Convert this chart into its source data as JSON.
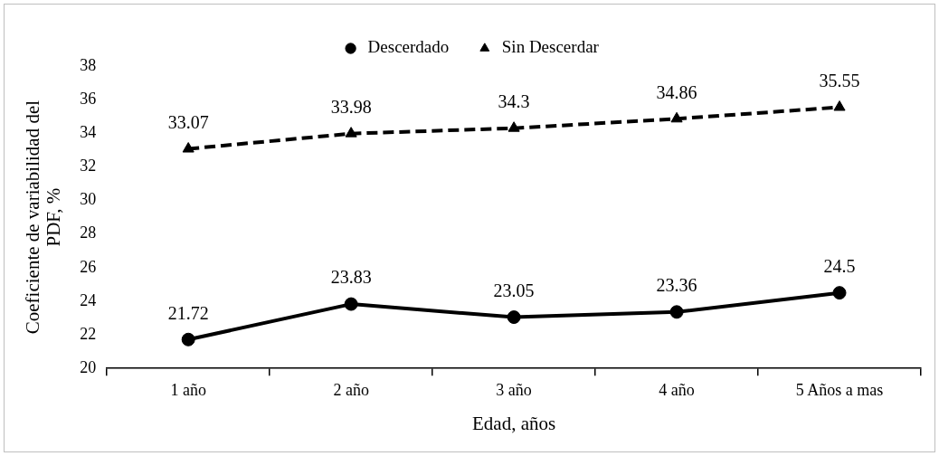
{
  "chart_data": {
    "type": "line",
    "xlabel": "Edad, años",
    "ylabel": "Coeficiente de variabilidad del PDF, %",
    "categories": [
      "1 año",
      "2 año",
      "3 año",
      "4 año",
      "5 Años a mas"
    ],
    "series": [
      {
        "name": "Descerdado",
        "color": "#000000",
        "values": [
          21.72,
          23.83,
          23.05,
          23.36,
          24.5
        ],
        "marker": "circle",
        "line_style": "solid"
      },
      {
        "name": "Sin Descerdar",
        "color": "#000000",
        "values": [
          33.07,
          33.98,
          34.3,
          34.86,
          35.55
        ],
        "marker": "triangle",
        "line_style": "dashed"
      }
    ],
    "ylim": [
      20,
      38
    ],
    "yticks": [
      20,
      22,
      24,
      26,
      28,
      30,
      32,
      34,
      36,
      38
    ],
    "grid": false,
    "legend": "top",
    "data_labels": true
  }
}
